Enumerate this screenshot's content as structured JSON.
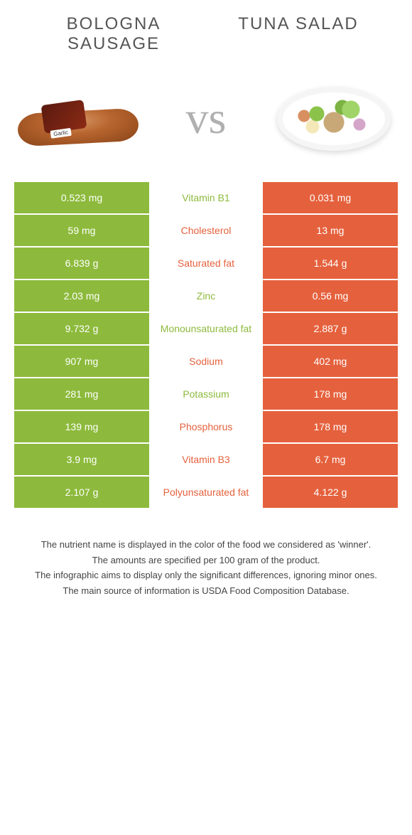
{
  "titles": {
    "left": "Bologna sausage",
    "right": "Tuna salad"
  },
  "vs": "vs",
  "colors": {
    "left_bg": "#8dba3c",
    "right_bg": "#e5613d",
    "left_text": "#8dba3c",
    "right_text": "#e5613d"
  },
  "rows": [
    {
      "left": "0.523 mg",
      "label": "Vitamin B1",
      "right": "0.031 mg",
      "winner": "left"
    },
    {
      "left": "59 mg",
      "label": "Cholesterol",
      "right": "13 mg",
      "winner": "right"
    },
    {
      "left": "6.839 g",
      "label": "Saturated fat",
      "right": "1.544 g",
      "winner": "right"
    },
    {
      "left": "2.03 mg",
      "label": "Zinc",
      "right": "0.56 mg",
      "winner": "left"
    },
    {
      "left": "9.732 g",
      "label": "Monounsaturated fat",
      "right": "2.887 g",
      "winner": "left"
    },
    {
      "left": "907 mg",
      "label": "Sodium",
      "right": "402 mg",
      "winner": "right"
    },
    {
      "left": "281 mg",
      "label": "Potassium",
      "right": "178 mg",
      "winner": "left"
    },
    {
      "left": "139 mg",
      "label": "Phosphorus",
      "right": "178 mg",
      "winner": "right"
    },
    {
      "left": "3.9 mg",
      "label": "Vitamin B3",
      "right": "6.7 mg",
      "winner": "right"
    },
    {
      "left": "2.107 g",
      "label": "Polyunsaturated fat",
      "right": "4.122 g",
      "winner": "right"
    }
  ],
  "footer": [
    "The nutrient name is displayed in the color of the food we considered as 'winner'.",
    "The amounts are specified per 100 gram of the product.",
    "The infographic aims to display only the significant differences, ignoring minor ones.",
    "The main source of information is USDA Food Composition Database."
  ]
}
